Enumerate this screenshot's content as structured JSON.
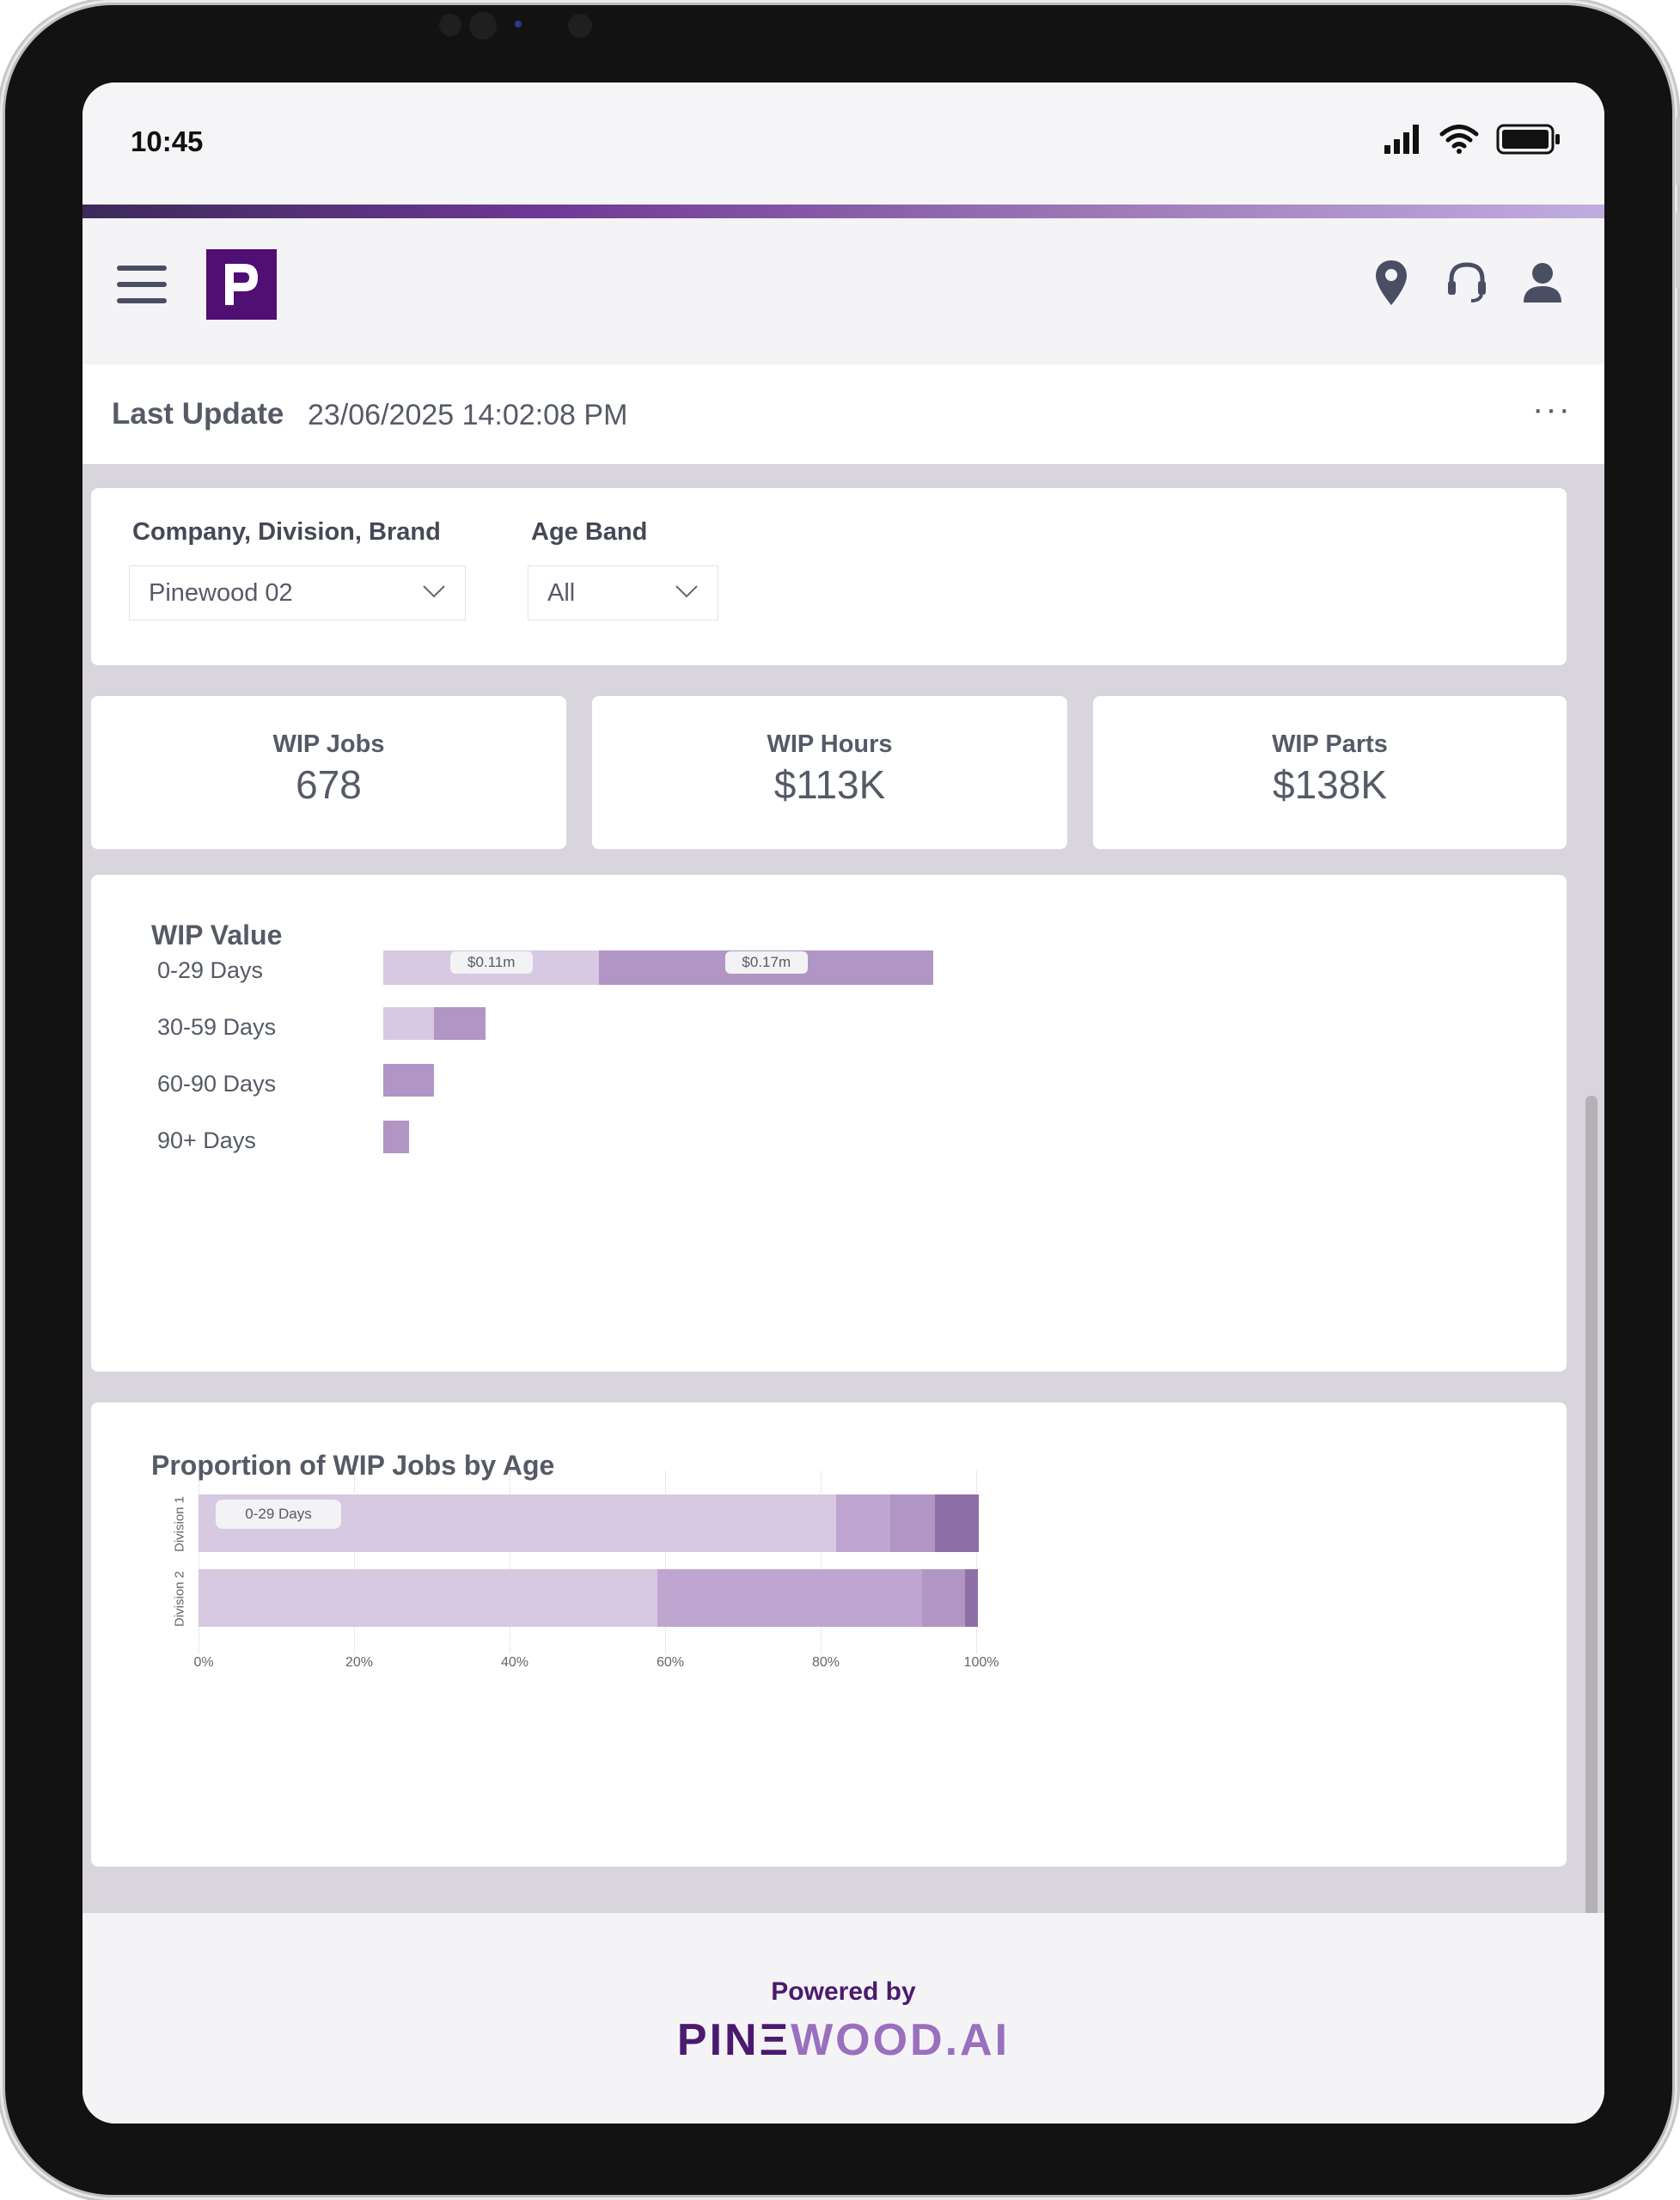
{
  "status_bar": {
    "time": "10:45"
  },
  "header": {
    "logo_letter": "P"
  },
  "update": {
    "label": "Last Update",
    "value": "23/06/2025 14:02:08 PM",
    "more": "···"
  },
  "filters": {
    "company_label": "Company, Division, Brand",
    "company_value": "Pinewood 02",
    "age_label": "Age Band",
    "age_value": "All"
  },
  "kpis": [
    {
      "label": "WIP Jobs",
      "value": "678"
    },
    {
      "label": "WIP Hours",
      "value": "$113K"
    },
    {
      "label": "WIP Parts",
      "value": "$138K"
    }
  ],
  "wip_value": {
    "title": "WIP Value",
    "data_labels": [
      "$0.11m",
      "$0.17m"
    ]
  },
  "proportion": {
    "title": "Proportion of WIP Jobs by Age",
    "segment_label": "0-29 Days"
  },
  "colors": {
    "seg1": "#d7c9e1",
    "seg2": "#b195c4",
    "seg2_light": "#bfa6d1",
    "seg3": "#b195c4",
    "seg4": "#8f6fa7",
    "brand_purple": "#4f0f73"
  },
  "chart_data": [
    {
      "type": "bar",
      "orientation": "horizontal",
      "stacked": true,
      "title": "WIP Value",
      "categories": [
        "0-29 Days",
        "30-59 Days",
        "60-90 Days",
        "90+ Days"
      ],
      "series": [
        {
          "values": [
            0.11,
            0.026,
            0,
            0
          ]
        },
        {
          "values": [
            0.17,
            0.026,
            0.026,
            0.013
          ]
        }
      ],
      "data_labels": [
        "$0.11m",
        "$0.17m"
      ]
    },
    {
      "type": "bar",
      "orientation": "horizontal",
      "stacked": true,
      "title": "Proportion of WIP Jobs by Age",
      "categories": [
        "Division 1",
        "Division 2"
      ],
      "x_ticks": [
        "0%",
        "20%",
        "40%",
        "60%",
        "80%",
        "100%"
      ],
      "xlim": [
        0,
        100
      ],
      "series": [
        {
          "name": "0-29 Days",
          "values": [
            82,
            59
          ]
        },
        {
          "values": [
            7,
            34
          ]
        },
        {
          "values": [
            5.7,
            5.6
          ]
        },
        {
          "values": [
            5.6,
            1.6
          ]
        }
      ]
    }
  ]
}
